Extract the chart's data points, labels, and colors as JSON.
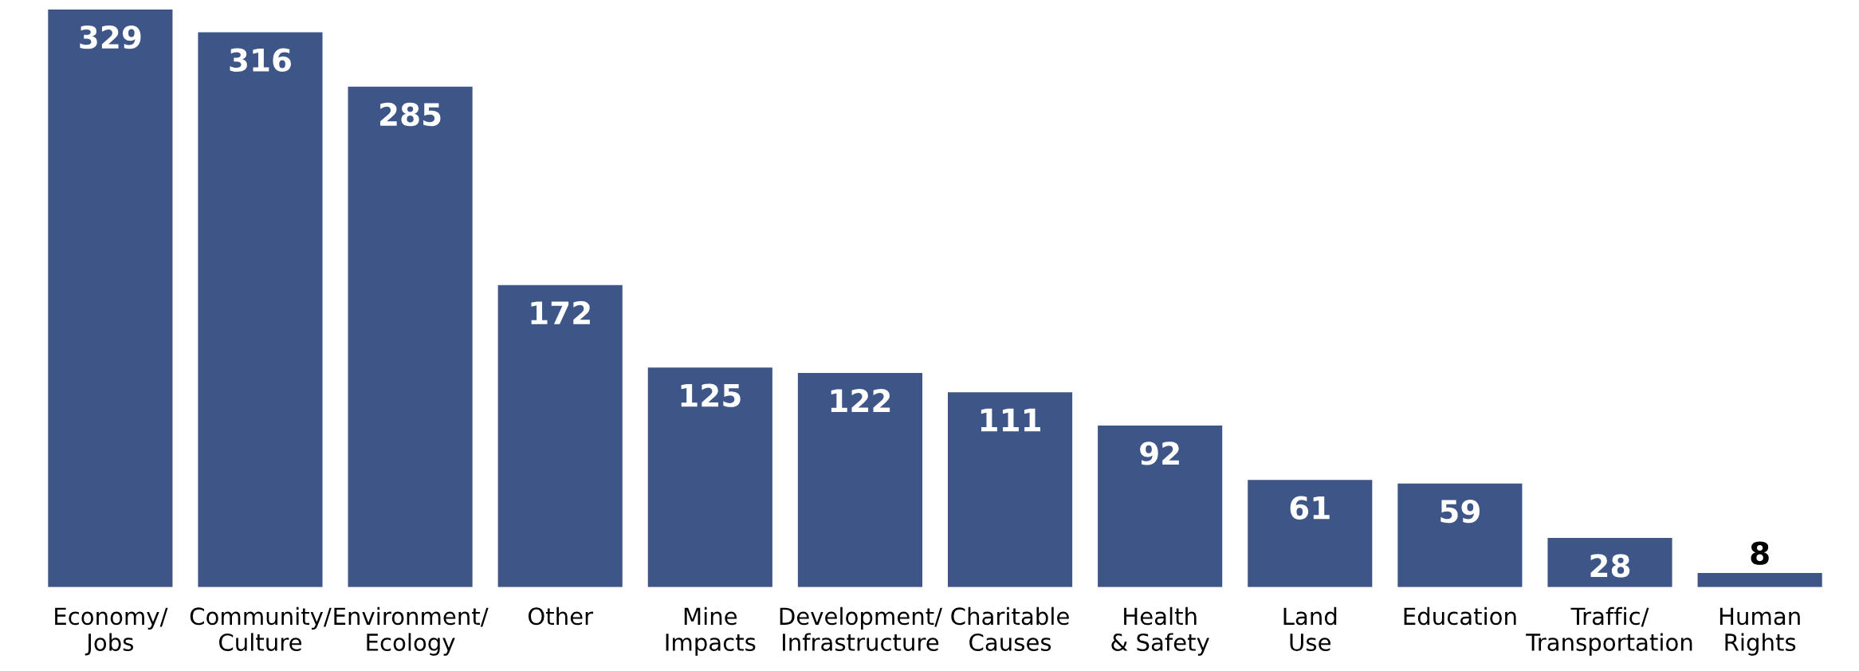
{
  "chart_data": {
    "type": "bar",
    "categories": [
      "Economy/\nJobs",
      "Community/\nCulture",
      "Environment/\nEcology",
      "Other",
      "Mine\nImpacts",
      "Development/\nInfrastructure",
      "Charitable\nCauses",
      "Health\n& Safety",
      "Land\nUse",
      "Education",
      "Traffic/\nTransportation",
      "Human\nRights"
    ],
    "values": [
      329,
      316,
      285,
      172,
      125,
      122,
      111,
      92,
      61,
      59,
      28,
      8
    ],
    "color": "#3e5587",
    "data_labels": true,
    "tick_labels": "x"
  }
}
